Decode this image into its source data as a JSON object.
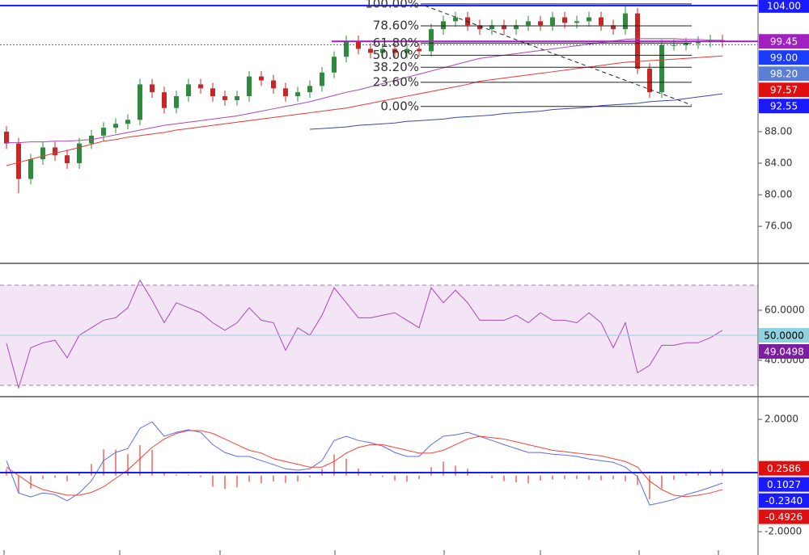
{
  "chart_data": [
    {
      "type": "candlestick",
      "color_up": "#2e8b3e",
      "color_down": "#c62828",
      "ylim": [
        71.4,
        104.7
      ],
      "yticks": [
        {
          "value": 88,
          "label": "88.00"
        },
        {
          "value": 84,
          "label": "84.00"
        },
        {
          "value": 80,
          "label": "80.00"
        },
        {
          "value": 76,
          "label": "76.00"
        }
      ],
      "open": [
        88,
        86.5,
        82,
        84.5,
        86,
        85,
        84,
        86.5,
        87.5,
        88.5,
        89,
        89.5,
        94,
        93,
        91,
        92.5,
        94,
        93.5,
        92.5,
        92,
        92.5,
        95,
        94.5,
        93.5,
        92.5,
        93,
        93.8,
        95.5,
        97.5,
        99.5,
        98.5,
        98,
        98.5,
        98,
        98.5,
        98.2,
        101,
        102,
        102.5,
        101.5,
        101,
        101.5,
        101,
        101.5,
        102,
        101.5,
        102.5,
        101.8,
        102,
        102.5,
        101.5,
        101,
        103,
        96,
        93,
        99,
        99,
        99.2,
        99.4,
        99.6
      ],
      "high": [
        88.7,
        87.2,
        85.2,
        86.7,
        86.7,
        85.7,
        87.2,
        88.2,
        89.2,
        89.7,
        90.2,
        94.7,
        94.7,
        93.7,
        93.2,
        94.7,
        94.7,
        94.2,
        93.2,
        93.2,
        95.7,
        95.7,
        95.2,
        94.2,
        93.7,
        94.5,
        96.2,
        98.2,
        100.2,
        100.2,
        99.2,
        99.2,
        99.2,
        99.2,
        99.2,
        101.7,
        102.7,
        103.2,
        103.2,
        102.2,
        102.2,
        102.2,
        102.2,
        102.7,
        102.7,
        103.2,
        103.2,
        102.7,
        103.2,
        103.2,
        102.2,
        104,
        103.7,
        96.7,
        99.7,
        99.7,
        99.9,
        100.1,
        100.3,
        100.3
      ],
      "low": [
        85.8,
        80.2,
        81.3,
        83.8,
        84.3,
        83.3,
        83.3,
        85.8,
        86.8,
        87.8,
        88.3,
        88.8,
        92.3,
        90.3,
        90.3,
        91.8,
        92.8,
        91.8,
        91.3,
        91.3,
        91.8,
        93.8,
        92.8,
        91.8,
        91.8,
        92.3,
        93.1,
        94.8,
        96.8,
        97.8,
        97.3,
        97.3,
        97.3,
        97.3,
        97.5,
        97.5,
        100.3,
        101.3,
        100.8,
        100.3,
        100.3,
        100.3,
        100.3,
        100.8,
        100.8,
        100.8,
        101.1,
        101.1,
        101.3,
        100.8,
        100.3,
        100.3,
        95.3,
        92.3,
        92.3,
        98.3,
        98.3,
        98.5,
        98.7,
        98.7
      ],
      "close": [
        86.5,
        82,
        84.5,
        86,
        85,
        84,
        86.5,
        87.5,
        88.5,
        89,
        89.5,
        94,
        93,
        91,
        92.5,
        94,
        93.5,
        92.5,
        92,
        92.5,
        95,
        94.5,
        93.5,
        92.5,
        93,
        93.8,
        95.5,
        97.5,
        99.5,
        98.5,
        98,
        98.5,
        98,
        98.5,
        98.2,
        101,
        102,
        102.5,
        101.5,
        101,
        101.5,
        101,
        101.5,
        102,
        101.5,
        102.5,
        101.8,
        102,
        102.5,
        101.5,
        101,
        103,
        96,
        93,
        99,
        99,
        99.2,
        99.4,
        99.6,
        99.4
      ],
      "series": [
        {
          "color": "#e53935",
          "values": [
            83.7,
            84.1,
            84.5,
            84.9,
            85.3,
            85.6,
            86.0,
            86.4,
            86.8,
            87.0,
            87.3,
            87.5,
            87.7,
            87.9,
            88.2,
            88.4,
            88.6,
            88.8,
            89.0,
            89.2,
            89.4,
            89.6,
            89.8,
            90.0,
            90.2,
            90.4,
            90.6,
            90.8,
            91.0,
            91.3,
            91.6,
            91.9,
            92.2,
            92.5,
            92.8,
            93.1,
            93.4,
            93.7,
            94.0,
            94.4,
            94.6,
            94.8,
            95.0,
            95.2,
            95.4,
            95.6,
            95.8,
            96.0,
            96.2,
            96.4,
            96.6,
            96.8,
            96.9,
            97.0,
            97.1,
            97.2,
            97.3,
            97.4,
            97.5,
            97.6
          ]
        },
        {
          "color": "#ab47bc",
          "values": [
            86.6,
            86.6,
            86.7,
            86.7,
            86.8,
            86.8,
            86.9,
            87.0,
            87.3,
            87.6,
            87.9,
            88.2,
            88.5,
            88.8,
            89.0,
            89.2,
            89.4,
            89.6,
            89.8,
            90.0,
            90.3,
            90.6,
            90.9,
            91.2,
            91.5,
            91.8,
            92.2,
            92.6,
            93.0,
            93.3,
            93.7,
            94.1,
            94.5,
            94.9,
            95.3,
            95.7,
            96.1,
            96.5,
            96.9,
            97.3,
            97.5,
            97.7,
            97.9,
            98.1,
            98.3,
            98.5,
            98.7,
            98.9,
            99.1,
            99.3,
            99.5,
            99.7,
            99.8,
            99.8,
            99.8,
            99.8,
            99.7,
            99.7,
            99.6,
            99.6
          ]
        },
        {
          "color": "#3949ab",
          "values": [
            null,
            null,
            null,
            null,
            null,
            null,
            null,
            null,
            null,
            null,
            null,
            null,
            null,
            null,
            null,
            null,
            null,
            null,
            null,
            null,
            null,
            null,
            null,
            null,
            null,
            88.3,
            88.4,
            88.5,
            88.6,
            88.8,
            88.9,
            89.0,
            89.1,
            89.3,
            89.4,
            89.5,
            89.6,
            89.8,
            89.9,
            90.0,
            90.1,
            90.3,
            90.4,
            90.5,
            90.6,
            90.8,
            90.9,
            91.0,
            91.1,
            91.3,
            91.4,
            91.5,
            91.6,
            91.8,
            91.9,
            92.0,
            92.2,
            92.4,
            92.6,
            92.8
          ]
        }
      ],
      "fib": {
        "high": 104.2,
        "low": 91.2,
        "levels": [
          {
            "value": 100,
            "label": "100.00%"
          },
          {
            "value": 78.6,
            "label": "78.60%"
          },
          {
            "value": 61.8,
            "label": "61.80%"
          },
          {
            "value": 50,
            "label": "50.00%"
          },
          {
            "value": 38.2,
            "label": "38.20%"
          },
          {
            "value": 23.6,
            "label": "23.60%"
          },
          {
            "value": 0,
            "label": "0.00%"
          }
        ]
      },
      "tags": [
        {
          "value": 104,
          "label": "104.00",
          "color": "#1a1aff",
          "text_color": "#ffffff",
          "line": "thick"
        },
        {
          "value": 99.45,
          "label": "99.45",
          "color": "#a020c0",
          "text_color": "#ffffff",
          "line": "thick"
        },
        {
          "value": 99,
          "label": "99.00",
          "color": "#1a3cff",
          "text_color": "#ffffff",
          "line": "dotted"
        },
        {
          "value": 98.2,
          "label": "98.20",
          "color": "#5b7fd6",
          "text_color": "#ffffff"
        },
        {
          "value": 97.57,
          "label": "97.57",
          "color": "#e01010",
          "text_color": "#ffffff"
        },
        {
          "value": 92.55,
          "label": "92.55",
          "color": "#1a1aff",
          "text_color": "#ffffff"
        }
      ]
    },
    {
      "type": "line",
      "ylim": [
        25.8,
        78.4
      ],
      "yticks": [
        {
          "value": 60,
          "label": "60.0000"
        },
        {
          "value": 40,
          "label": "40.0000"
        }
      ],
      "band": [
        30,
        70
      ],
      "band_color": "#f3e5f5",
      "series": [
        {
          "color": "#ab47bc",
          "values": [
            46.8,
            29,
            45,
            47,
            48,
            41,
            50,
            53,
            56,
            57,
            61,
            72,
            64,
            55,
            63,
            61,
            59,
            55,
            52,
            55,
            61,
            56,
            55,
            44,
            53,
            50,
            58,
            69,
            63,
            57,
            57,
            58,
            59,
            56,
            53,
            69,
            63,
            68,
            63,
            56,
            56,
            56,
            58,
            55,
            59,
            56,
            56,
            55,
            59,
            55,
            45,
            55,
            35,
            38,
            46,
            46,
            47,
            47,
            49,
            52
          ]
        }
      ],
      "tags": [
        {
          "value": 50,
          "label": "50.0000",
          "color": "#8fd3e0",
          "text_color": "#000000",
          "line": "thin"
        },
        {
          "value": 49.0498,
          "label": "49.0498",
          "color": "#7b1fa2",
          "text_color": "#ffffff"
        }
      ]
    },
    {
      "type": "line",
      "ylim": [
        -2.83,
        2.78
      ],
      "yticks": [
        {
          "value": 2,
          "label": "2.0000"
        },
        {
          "value": -2,
          "label": "-2.0000"
        }
      ],
      "series": [
        {
          "type": "bar",
          "color": "#f28b82",
          "values": [
            0.23,
            -0.62,
            -0.46,
            -0.12,
            -0.08,
            -0.2,
            0.08,
            0.41,
            0.93,
            0.92,
            0.76,
            1.08,
            0.91,
            0.1,
            0.04,
            0.03,
            -0.06,
            -0.4,
            -0.48,
            -0.42,
            -0.22,
            -0.27,
            -0.21,
            -0.26,
            -0.21,
            -0.06,
            0.23,
            0.75,
            0.6,
            0.25,
            0.07,
            -0.05,
            -0.18,
            -0.22,
            -0.12,
            0.3,
            0.5,
            0.35,
            0.24,
            0.0,
            -0.1,
            -0.2,
            -0.24,
            -0.28,
            -0.18,
            -0.14,
            -0.12,
            -0.12,
            -0.16,
            -0.17,
            -0.13,
            -0.2,
            -0.34,
            -0.85,
            -0.46,
            -0.15,
            0.07,
            0.14,
            0.2,
            0.23
          ]
        },
        {
          "type": "line",
          "color": "#5c6bf0",
          "values": [
            0.53,
            -0.62,
            -0.76,
            -0.62,
            -0.68,
            -0.9,
            -0.62,
            -0.19,
            0.53,
            0.82,
            0.96,
            1.68,
            1.91,
            1.4,
            1.54,
            1.63,
            1.54,
            1.1,
            0.82,
            0.68,
            0.68,
            0.53,
            0.39,
            0.24,
            0.19,
            0.24,
            0.53,
            1.25,
            1.4,
            1.25,
            1.17,
            1.05,
            0.82,
            0.68,
            0.68,
            1.1,
            1.4,
            1.45,
            1.54,
            1.4,
            1.25,
            1.1,
            0.96,
            0.82,
            0.82,
            0.76,
            0.73,
            0.68,
            0.59,
            0.53,
            0.47,
            0.3,
            -0.04,
            -1.05,
            -0.96,
            -0.85,
            -0.68,
            -0.56,
            -0.42,
            -0.27
          ]
        },
        {
          "type": "line",
          "color": "#f44336",
          "values": [
            0.3,
            0.0,
            -0.3,
            -0.5,
            -0.6,
            -0.7,
            -0.7,
            -0.6,
            -0.4,
            -0.1,
            0.2,
            0.6,
            1.0,
            1.3,
            1.5,
            1.6,
            1.6,
            1.5,
            1.3,
            1.1,
            0.9,
            0.8,
            0.6,
            0.5,
            0.4,
            0.3,
            0.3,
            0.5,
            0.8,
            1.0,
            1.1,
            1.1,
            1.0,
            0.9,
            0.8,
            0.8,
            0.9,
            1.1,
            1.3,
            1.4,
            1.35,
            1.3,
            1.2,
            1.1,
            1.0,
            0.9,
            0.85,
            0.8,
            0.75,
            0.7,
            0.6,
            0.5,
            0.3,
            -0.2,
            -0.5,
            -0.7,
            -0.75,
            -0.7,
            -0.62,
            -0.5
          ]
        }
      ],
      "tags": [
        {
          "value": 0.2586,
          "label": "0.2586",
          "color": "#e01010",
          "text_color": "#ffffff"
        },
        {
          "value": 0.1027,
          "label": "0.1027",
          "color": "#1a1aff",
          "text_color": "#ffffff",
          "line": "thick"
        },
        {
          "value": -0.234,
          "label": "-0.2340",
          "color": "#1a1aff",
          "text_color": "#ffffff"
        },
        {
          "value": -0.4926,
          "label": "-0.4926",
          "color": "#e01010",
          "text_color": "#ffffff"
        }
      ]
    }
  ]
}
